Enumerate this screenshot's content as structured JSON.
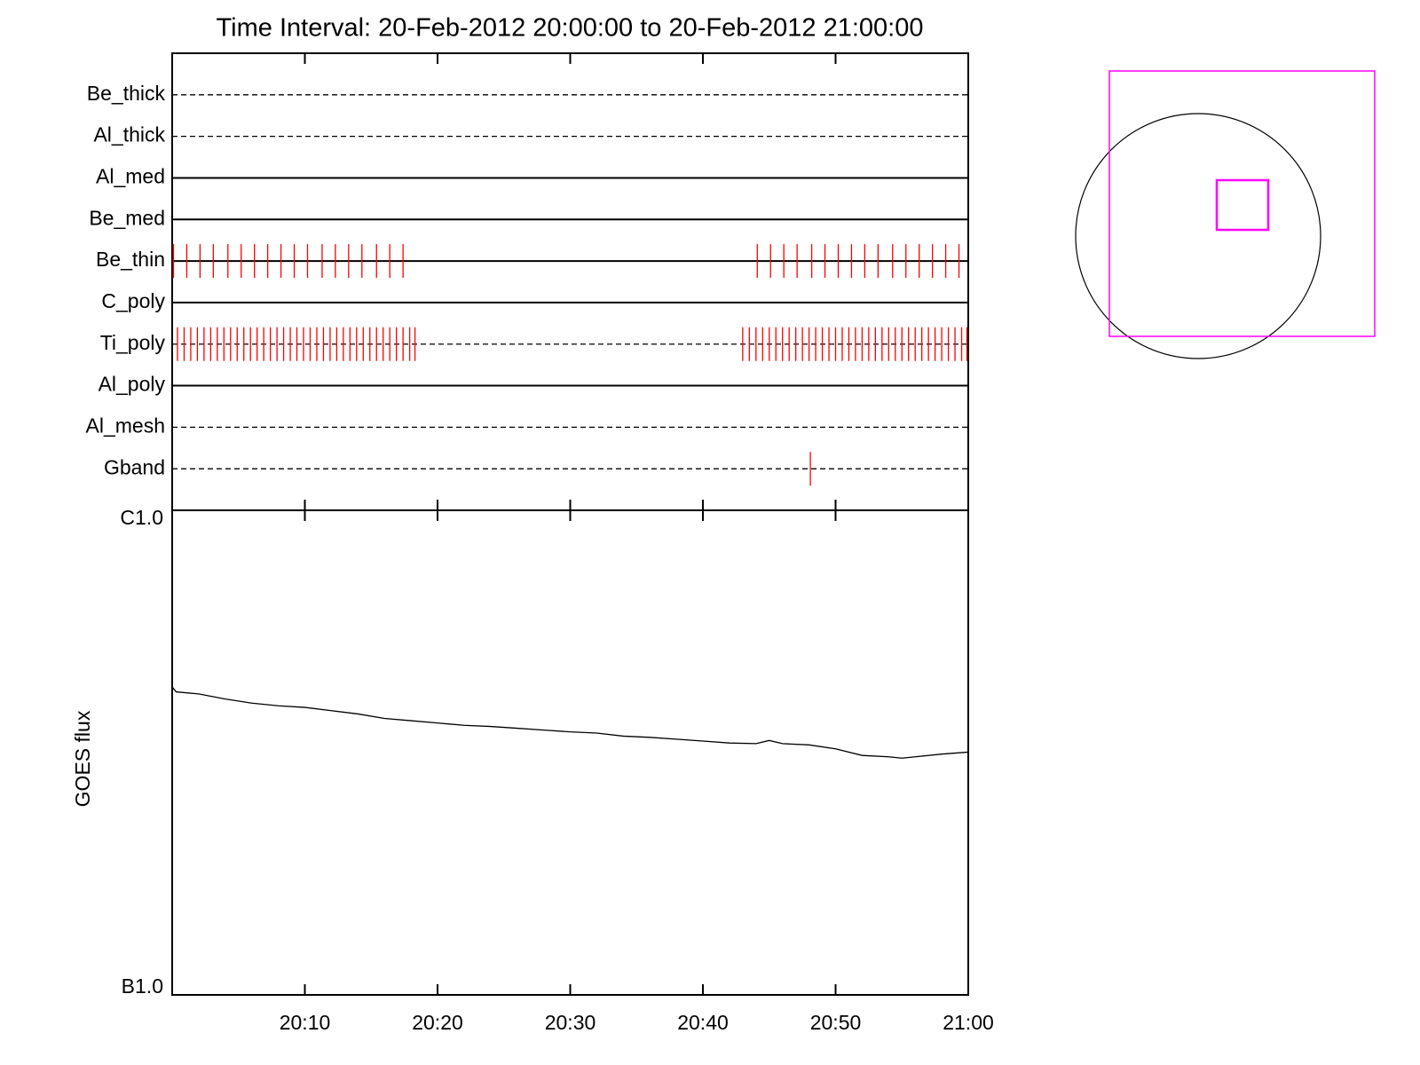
{
  "chart_data": [
    {
      "type": "timeline",
      "title": "Time Interval: 20-Feb-2012 20:00:00 to 20-Feb-2012 21:00:00",
      "xlim": [
        0,
        60
      ],
      "event_color": "#ff0000",
      "rows": [
        {
          "name": "Be_thick",
          "dashed": true,
          "events": []
        },
        {
          "name": "Al_thick",
          "dashed": true,
          "events": []
        },
        {
          "name": "Al_med",
          "dashed": false,
          "events": []
        },
        {
          "name": "Be_med",
          "dashed": false,
          "events": []
        },
        {
          "name": "Be_thin",
          "dashed": false,
          "events": [
            0.1,
            1.1,
            2.1,
            3.1,
            4.2,
            5.2,
            6.2,
            7.2,
            8.2,
            9.2,
            10.2,
            11.3,
            12.3,
            13.3,
            14.3,
            15.4,
            16.4,
            17.4,
            44.1,
            45.1,
            46.1,
            47.1,
            48.2,
            49.2,
            50.2,
            51.2,
            52.2,
            53.2,
            54.3,
            55.3,
            56.3,
            57.3,
            58.3,
            59.3
          ]
        },
        {
          "name": "C_poly",
          "dashed": false,
          "events": []
        },
        {
          "name": "Ti_poly",
          "dashed": true,
          "events": [
            0.4,
            0.9,
            1.4,
            1.9,
            2.4,
            2.9,
            3.4,
            3.9,
            4.4,
            4.9,
            5.4,
            5.9,
            6.4,
            6.9,
            7.4,
            7.9,
            8.4,
            8.9,
            9.4,
            9.9,
            10.4,
            10.9,
            11.4,
            11.9,
            12.4,
            12.9,
            13.4,
            13.9,
            14.4,
            14.9,
            15.4,
            15.9,
            16.4,
            16.9,
            17.4,
            17.9,
            18.3,
            43.0,
            43.5,
            44.0,
            44.5,
            45.0,
            45.5,
            46.0,
            46.5,
            47.0,
            47.5,
            48.0,
            48.5,
            49.0,
            49.5,
            50.0,
            50.5,
            51.0,
            51.5,
            52.0,
            52.5,
            53.0,
            53.5,
            54.0,
            54.5,
            55.0,
            55.5,
            56.0,
            56.5,
            57.0,
            57.5,
            58.0,
            58.5,
            59.0,
            59.5,
            59.9
          ]
        },
        {
          "name": "Al_poly",
          "dashed": false,
          "events": []
        },
        {
          "name": "Al_mesh",
          "dashed": true,
          "events": []
        },
        {
          "name": "Gband",
          "dashed": true,
          "events": [
            48.1
          ]
        }
      ]
    },
    {
      "type": "line",
      "ylabel": "GOES flux",
      "log_y": true,
      "color": "#000000",
      "xlim": [
        0,
        60
      ],
      "xticks": [
        {
          "value": 10,
          "label": "20:10"
        },
        {
          "value": 20,
          "label": "20:20"
        },
        {
          "value": 30,
          "label": "20:30"
        },
        {
          "value": 40,
          "label": "20:40"
        },
        {
          "value": 50,
          "label": "20:50"
        },
        {
          "value": 60,
          "label": "21:00"
        }
      ],
      "ylim": [
        1e-07,
        1e-06
      ],
      "yticks": [
        {
          "value": 1e-07,
          "label": "B1.0"
        },
        {
          "value": 1e-06,
          "label": "C1.0"
        }
      ],
      "x": [
        0,
        0.3,
        2,
        4,
        6,
        8,
        10,
        12,
        14,
        16,
        18,
        20,
        22,
        24,
        26,
        28,
        30,
        32,
        34,
        36,
        38,
        40,
        42,
        44,
        45,
        46,
        48,
        50,
        52,
        54,
        55,
        56,
        58,
        60
      ],
      "values": [
        4.32e-07,
        4.22e-07,
        4.18e-07,
        4.08e-07,
        4e-07,
        3.95e-07,
        3.92e-07,
        3.86e-07,
        3.8e-07,
        3.72e-07,
        3.68e-07,
        3.64e-07,
        3.6e-07,
        3.58e-07,
        3.55e-07,
        3.52e-07,
        3.49e-07,
        3.47e-07,
        3.42e-07,
        3.4e-07,
        3.37e-07,
        3.34e-07,
        3.31e-07,
        3.3e-07,
        3.35e-07,
        3.3e-07,
        3.28e-07,
        3.22e-07,
        3.12e-07,
        3.1e-07,
        3.08e-07,
        3.1e-07,
        3.14e-07,
        3.17e-07
      ]
    }
  ]
}
